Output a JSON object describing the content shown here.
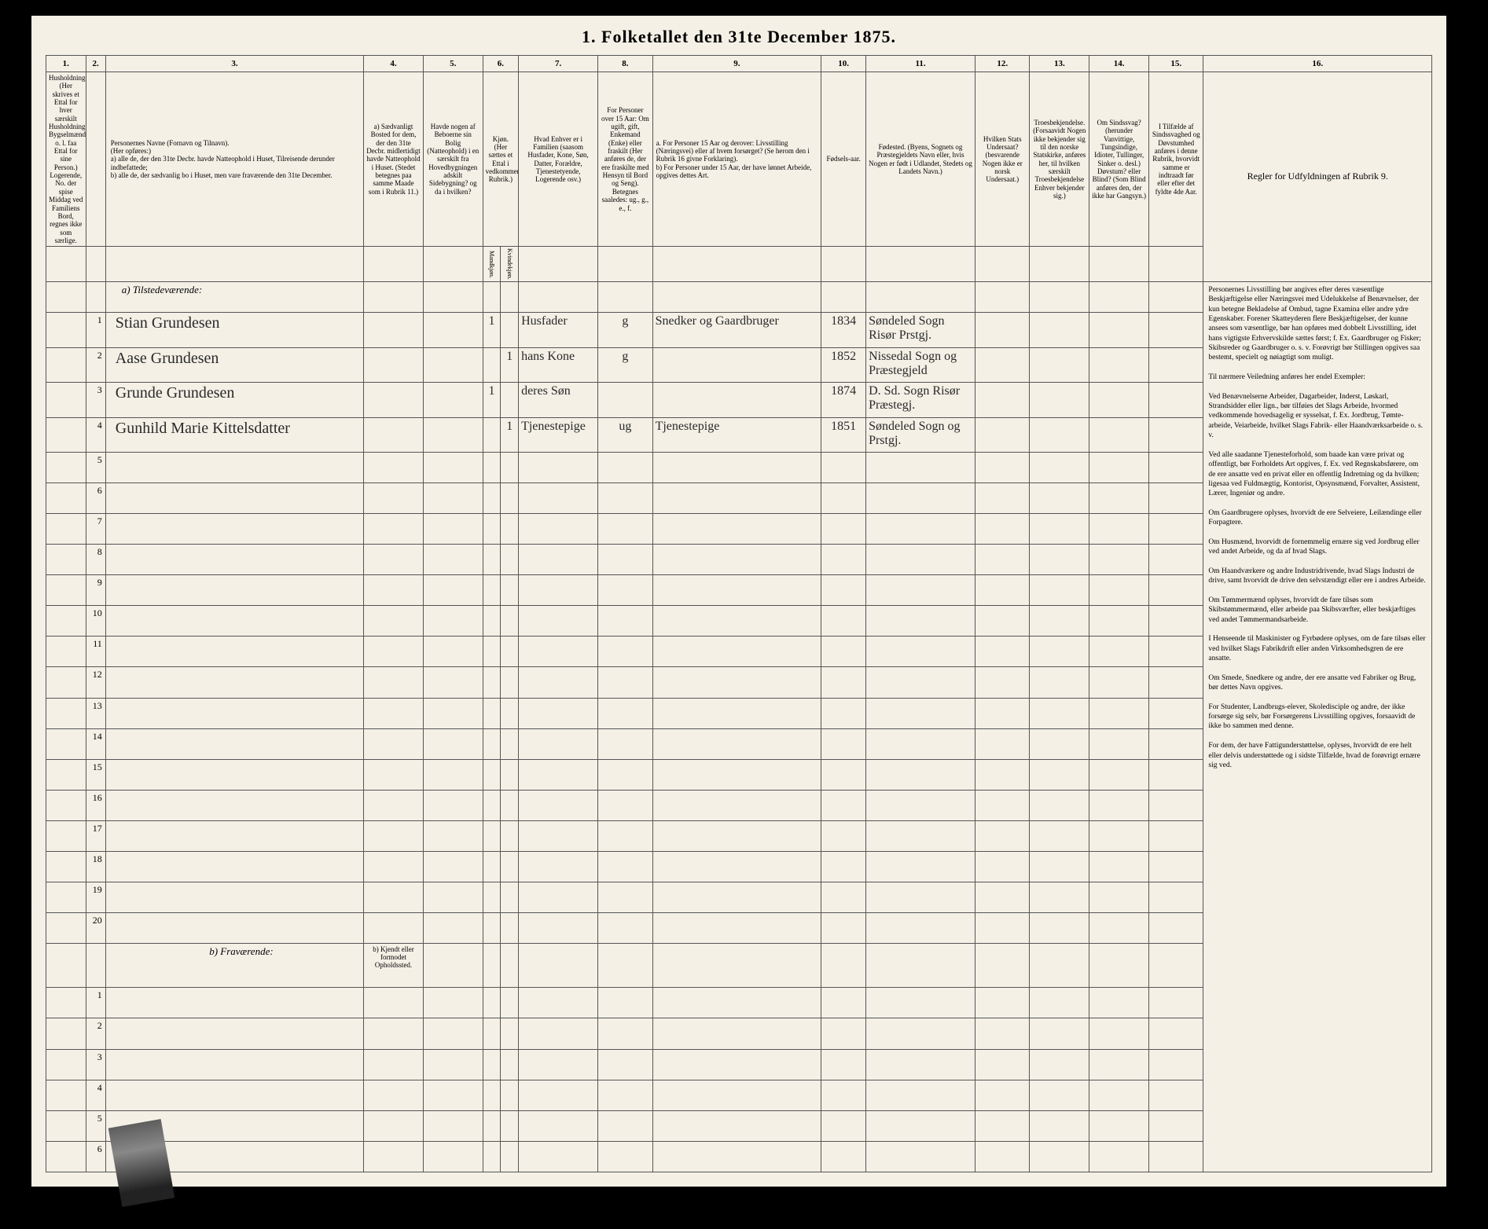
{
  "title": "1.  Folketallet den 31te December 1875.",
  "columns": {
    "c1": "1.",
    "c2": "2.",
    "c3": "3.",
    "c4": "4.",
    "c5": "5.",
    "c6": "6.",
    "c7": "7.",
    "c8": "8.",
    "c9": "9.",
    "c10": "10.",
    "c11": "11.",
    "c12": "12.",
    "c13": "13.",
    "c14": "14.",
    "c15": "15.",
    "c16": "16."
  },
  "headers": {
    "h1": "Husholdninger. (Her skrives et Ettal for hver særskilt Husholdning; Bygselmænd o. l. faa Ettal for sine Person.) Logerende, No. der spise Middag ved Familiens Bord, regnes ikke som særlige.",
    "h2": "",
    "h3": "Personernes Navne (Fornavn og Tilnavn).\n(Her opføres:)\na) alle de, der den 31te Decbr. havde Natteophold i Huset, Tilreisende derunder indbefattede;\nb) alle de, der sædvanlig bo i Huset, men vare fraværende den 31te December.",
    "h4": "a) Sædvanligt Bosted for dem, der den 31te Decbr. midlertidigt havde Natteophold i Huset. (Stedet betegnes paa samme Maade som i Rubrik 11.)",
    "h5": "Havde nogen af Beboerne sin Bolig (Natteophold) i en særskilt fra Hovedbygningen adskilt Sidebygning? og da i hvilken?",
    "h6": "Kjøn. (Her sættes et Ettal i vedkommende Rubrik.)",
    "h6a": "Mandkjøn.",
    "h6b": "Kvindekjøn.",
    "h7": "Hvad Enhver er i Familien (saasom Husfader, Kone, Søn, Datter, Forældre, Tjenestetyende, Logerende osv.)",
    "h8": "For Personer over 15 Aar: Om ugift, gift, Enkemand (Enke) eller fraskilt (Her anføres de, der ere fraskilte med Hensyn til Bord og Seng). Betegnes saaledes: ug., g., e., f.",
    "h9": "a. For Personer 15 Aar og derover: Livsstilling (Næringsvei) eller af hvem forsørget? (Se herom den i Rubrik 16 givne Forklaring).\nb) For Personer under 15 Aar, der have lønnet Arbeide, opgives dettes Art.",
    "h10": "Fødsels-aar.",
    "h11": "Fødested. (Byens, Sognets og Præstegjeldets Navn eller, hvis Nogen er født i Udlandet, Stedets og Landets Navn.)",
    "h12": "Hvilken Stats Undersaat? (besvarende Nogen ikke er norsk Undersaat.)",
    "h13": "Troesbekjendelse. (Forsaavidt Nogen ikke bekjender sig til den norske Statskirke, anføres her, til hvilken særskilt Troesbekjendelse Enhver bekjender sig.)",
    "h14": "Om Sindssvag? (herunder Vanvittige, Tungsindige, Idioter, Tullinger, Sinker o. desl.) Døvstum? eller Blind? (Som Blind anføres den, der ikke har Gangsyn.)",
    "h15": "I Tilfælde af Sindssvaghed og Døvstumhed anføres i denne Rubrik, hvorvidt samme er indtraadt før eller efter det fyldte 4de Aar.",
    "h16": "Regler for Udfyldningen af Rubrik 9."
  },
  "section_a": "a) Tilstedeværende:",
  "section_b": "b) Fraværende:",
  "section_b_note": "b) Kjendt eller formodet Opholdssted.",
  "rows_a": [
    {
      "n": "1",
      "name": "Stian Grundesen",
      "c6a": "1",
      "c6b": "",
      "c7": "Husfader",
      "c8": "g",
      "c9": "Snedker og Gaardbruger",
      "c10": "1834",
      "c11": "Søndeled Sogn Risør Prstgj."
    },
    {
      "n": "2",
      "name": "Aase Grundesen",
      "c6a": "",
      "c6b": "1",
      "c7": "hans Kone",
      "c8": "g",
      "c9": "",
      "c10": "1852",
      "c11": "Nissedal Sogn og Præstegjeld"
    },
    {
      "n": "3",
      "name": "Grunde Grundesen",
      "c6a": "1",
      "c6b": "",
      "c7": "deres Søn",
      "c8": "",
      "c9": "",
      "c10": "1874",
      "c11": "D. Sd. Sogn Risør Præstegj."
    },
    {
      "n": "4",
      "name": "Gunhild Marie Kittelsdatter",
      "c6a": "",
      "c6b": "1",
      "c7": "Tjenestepige",
      "c8": "ug",
      "c9": "Tjenestepige",
      "c10": "1851",
      "c11": "Søndeled Sogn og Prstgj."
    }
  ],
  "empty_a": [
    "5",
    "6",
    "7",
    "8",
    "9",
    "10",
    "11",
    "12",
    "13",
    "14",
    "15",
    "16",
    "17",
    "18",
    "19",
    "20"
  ],
  "empty_b": [
    "1",
    "2",
    "3",
    "4",
    "5",
    "6"
  ],
  "rules_text": "Personernes Livsstilling bør angives efter deres væsentlige Beskjæftigelse eller Næringsvei med Udelukkelse af Benævnelser, der kun betegne Bekladelse af Ombud, tagne Examina eller andre ydre Egenskaber. Forener Skatteyderen flere Beskjæftigelser, der kunne ansees som væsentlige, bør han opføres med dobbelt Livsstilling, idet hans vigtigste Erhvervskilde sættes først; f. Ex. Gaardbruger og Fisker; Skibsreder og Gaardbruger o. s. v. Forøvrigt bør Stillingen opgives saa bestemt, specielt og nøiagtigt som muligt.\n\nTil nærmere Veiledning anføres her endel Exempler:\n\nVed Benævnelserne Arbeider, Dagarbeider, Inderst, Løskarl, Strandsidder eller lign., bør tilføies det Slags Arbeide, hvormed vedkommende hovedsagelig er sysselsat, f. Ex. Jordbrug, Tømte-arbeide, Veiarbeide, hvilket Slags Fabrik- eller Haandværksarbeide o. s. v.\n\nVed alle saadanne Tjenesteforhold, som baade kan være privat og offentligt, bør Forholdets Art opgives, f. Ex. ved Regnskabsførere, om de ere ansatte ved en privat eller en offentlig Indretning og da hvilken; ligesaa ved Fuldmægtig, Kontorist, Opsynsmænd, Forvalter, Assistent, Lærer, Ingeniør og andre.\n\nOm Gaardbrugere oplyses, hvorvidt de ere Selveiere, Leilændinge eller Forpagtere.\n\nOm Husmænd, hvorvidt de fornemmelig ernære sig ved Jordbrug eller ved andet Arbeide, og da af hvad Slags.\n\nOm Haandværkere og andre Industridrivende, hvad Slags Industri de drive, samt hvorvidt de drive den selvstændigt eller ere i andres Arbeide.\n\nOm Tømmermænd oplyses, hvorvidt de fare tilsøs som Skibstømmermænd, eller arbeide paa Skibsværfter, eller beskjæftiges ved andet Tømmermandsarbeide.\n\nI Henseende til Maskinister og Fyrbødere oplyses, om de fare tilsøs eller ved hvilket Slags Fabrikdrift eller anden Virksomhedsgren de ere ansatte.\n\nOm Smede, Snedkere og andre, der ere ansatte ved Fabriker og Brug, bør dettes Navn opgives.\n\nFor Studenter, Landbrugs-elever, Skoledisciple og andre, der ikke forsørge sig selv, bør Forsørgerens Livsstilling opgives, forsaavidt de ikke bo sammen med denne.\n\nFor dem, der have Fattigunderstøttelse, oplyses, hvorvidt de ere helt eller delvis understøttede og i sidste Tilfælde, hvad de forøvrigt ernære sig ved."
}
